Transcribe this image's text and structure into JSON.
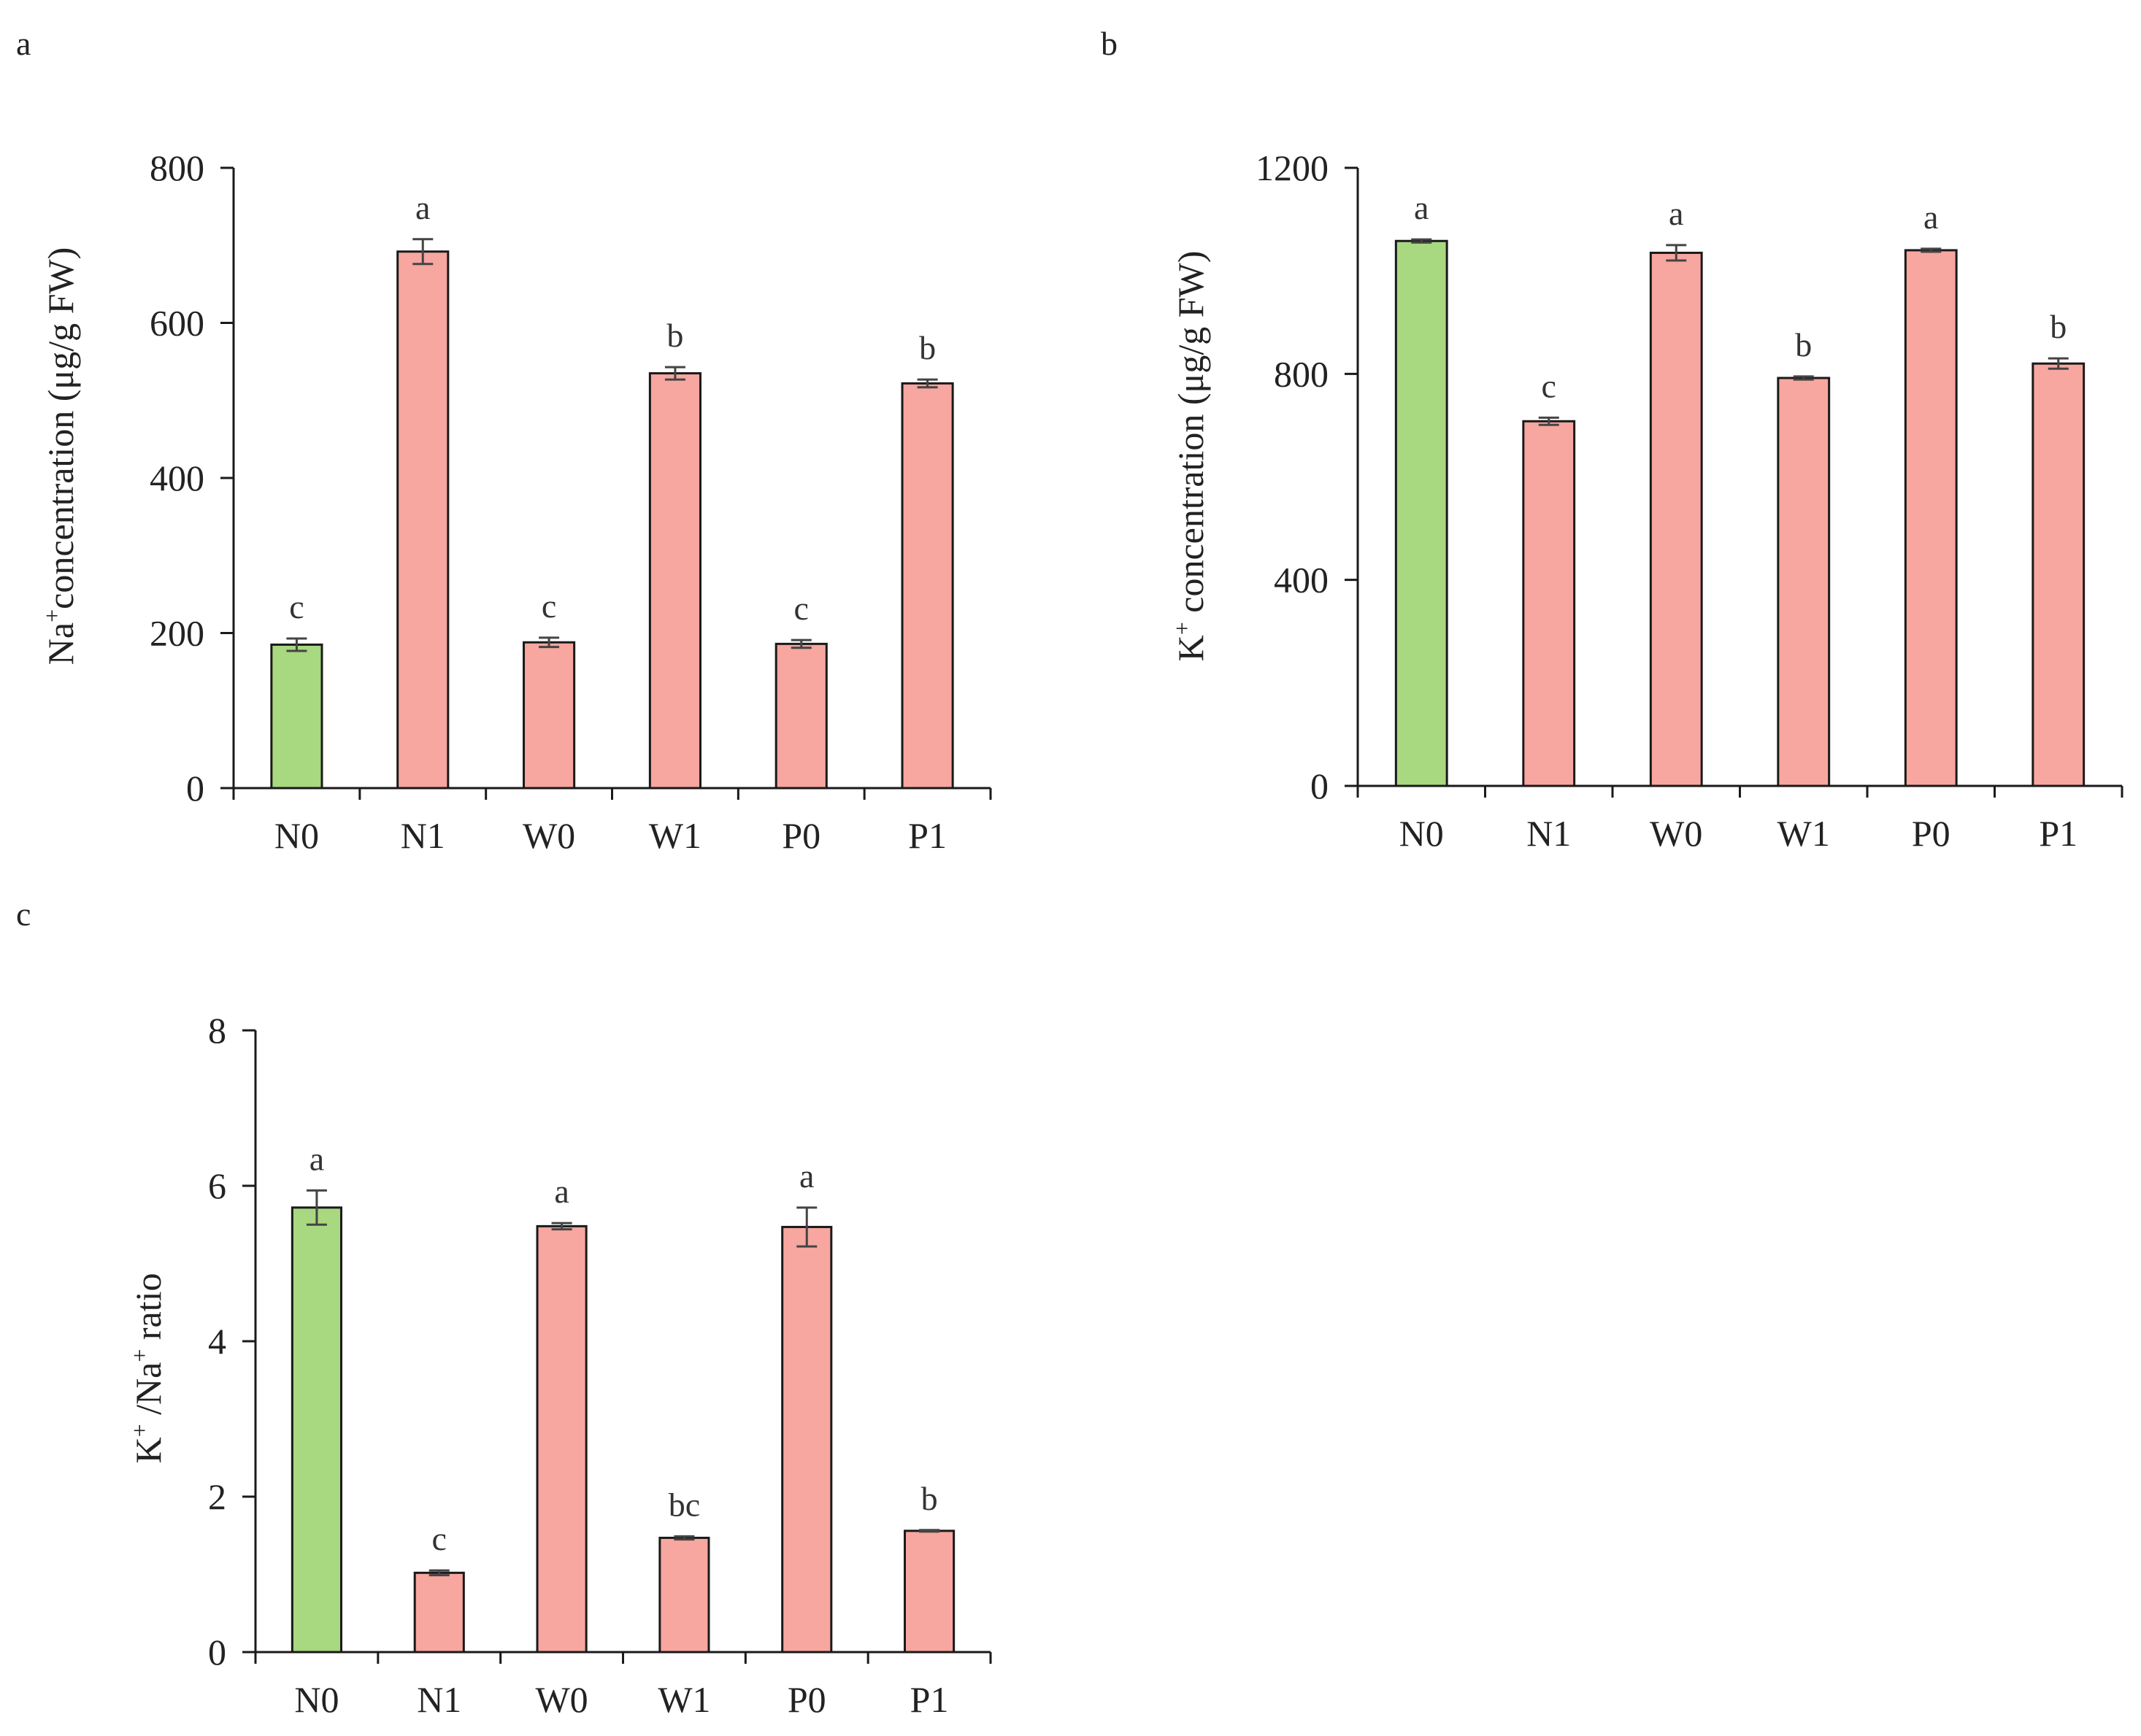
{
  "figure": {
    "panels": [
      "a",
      "b",
      "c"
    ]
  },
  "colors": {
    "control_bar": "#a8d880",
    "treatment_bar": "#f7a6a0",
    "bar_edge": "#1a1a1a",
    "axis": "#1a1a1a",
    "error_bar": "#444444"
  },
  "chart_data": [
    {
      "panel": "a",
      "type": "bar",
      "title": "",
      "xlabel": "",
      "ylabel": "Na⁺concentration (μg/g FW)",
      "ylabel_parts": {
        "ion": "Na",
        "charge": "+",
        "rest": "concentration (μg/g FW)"
      },
      "categories": [
        "N0",
        "N1",
        "W0",
        "W1",
        "P0",
        "P1"
      ],
      "values": [
        185,
        692,
        188,
        535,
        186,
        522
      ],
      "errors": [
        8,
        16,
        6,
        8,
        5,
        5
      ],
      "significance": [
        "c",
        "a",
        "c",
        "b",
        "c",
        "b"
      ],
      "ylim": [
        0,
        800
      ],
      "yticks": [
        0,
        200,
        400,
        600,
        800
      ],
      "ytick_labels": [
        "0",
        "200",
        "400",
        "600",
        "800"
      ],
      "grid": false
    },
    {
      "panel": "b",
      "type": "bar",
      "title": "",
      "xlabel": "",
      "ylabel": "K⁺ concentration (μg/g FW)",
      "ylabel_parts": {
        "ion": "K",
        "charge": "+",
        "rest": " concentration (μg/g FW)"
      },
      "categories": [
        "N0",
        "N1",
        "W0",
        "W1",
        "P0",
        "P1"
      ],
      "values": [
        1058,
        708,
        1035,
        792,
        1040,
        820
      ],
      "errors": [
        3,
        7,
        15,
        3,
        3,
        10
      ],
      "significance": [
        "a",
        "c",
        "a",
        "b",
        "a",
        "b"
      ],
      "ylim": [
        0,
        1200
      ],
      "yticks": [
        0,
        400,
        800,
        1200
      ],
      "ytick_labels": [
        "0",
        "400",
        "800",
        "1200"
      ],
      "grid": false
    },
    {
      "panel": "c",
      "type": "bar",
      "title": "",
      "xlabel": "",
      "ylabel": "K⁺ /Na⁺ ratio",
      "ylabel_parts": {
        "ion1": "K",
        "charge1": "+",
        "sep": " /Na",
        "charge2": "+",
        "rest": " ratio"
      },
      "categories": [
        "N0",
        "N1",
        "W0",
        "W1",
        "P0",
        "P1"
      ],
      "values": [
        5.72,
        1.02,
        5.48,
        1.47,
        5.47,
        1.56
      ],
      "errors": [
        0.22,
        0.03,
        0.04,
        0.02,
        0.25,
        0.01
      ],
      "significance": [
        "a",
        "c",
        "a",
        "bc",
        "a",
        "b"
      ],
      "ylim": [
        0,
        8
      ],
      "yticks": [
        0,
        2,
        4,
        6,
        8
      ],
      "ytick_labels": [
        "0",
        "2",
        "4",
        "6",
        "8"
      ],
      "grid": false
    }
  ]
}
